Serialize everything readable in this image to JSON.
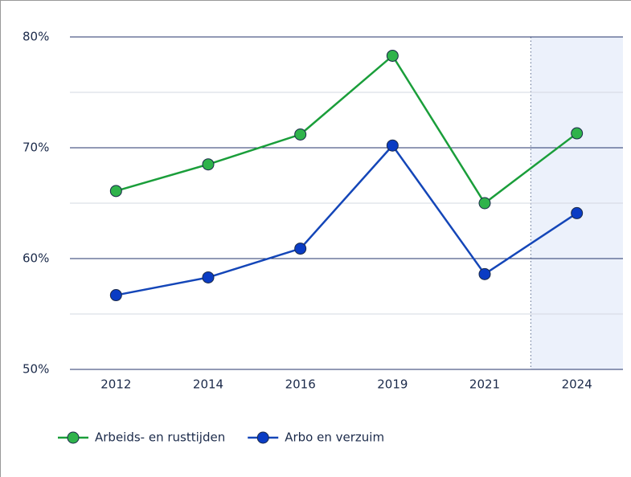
{
  "chart_data": {
    "type": "line",
    "categories": [
      "2012",
      "2014",
      "2016",
      "2019",
      "2021",
      "2024"
    ],
    "series": [
      {
        "name": "Arbeids- en rusttijden",
        "color": "#1a9e3a",
        "marker_color": "#2fb34b",
        "values": [
          66.1,
          68.5,
          71.2,
          78.3,
          65.0,
          71.3
        ]
      },
      {
        "name": "Arbo en verzuim",
        "color": "#1446b8",
        "marker_color": "#0a3cc4",
        "values": [
          56.7,
          58.3,
          60.9,
          70.2,
          58.6,
          64.1
        ]
      }
    ],
    "ylim": [
      50,
      80
    ],
    "yticks": [
      {
        "value": 50,
        "label": "50%"
      },
      {
        "value": 60,
        "label": "60%"
      },
      {
        "value": 70,
        "label": "70%"
      },
      {
        "value": 80,
        "label": "80%"
      }
    ],
    "minor_yticks": [
      55,
      65,
      75
    ],
    "grid": true,
    "highlight_index": 5,
    "legend": "bottom-left"
  }
}
